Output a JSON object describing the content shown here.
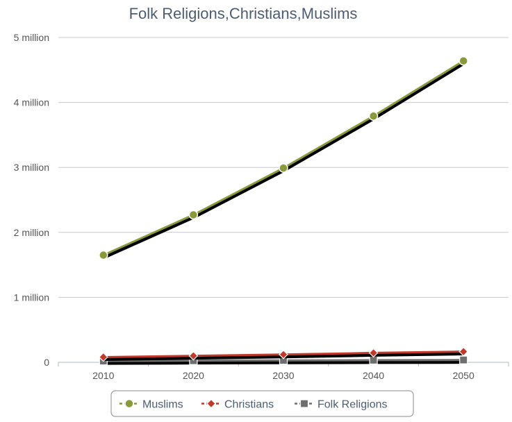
{
  "chart_data": {
    "type": "line",
    "title": "Folk Religions,Christians,Muslims",
    "xlabel": "",
    "ylabel": "",
    "categories": [
      "2010",
      "2020",
      "2030",
      "2040",
      "2050"
    ],
    "y_ticks": [
      0,
      1000000,
      2000000,
      3000000,
      4000000,
      5000000
    ],
    "y_tick_labels": [
      "0",
      "1 million",
      "2 million",
      "3 million",
      "4 million",
      "5 million"
    ],
    "ylim": [
      0,
      5000000
    ],
    "grid": true,
    "legend_position": "bottom",
    "series": [
      {
        "name": "Muslims",
        "values": [
          1650000,
          2270000,
          2990000,
          3790000,
          4640000
        ],
        "color": "#8a9a3b",
        "marker": "circle"
      },
      {
        "name": "Christians",
        "values": [
          80000,
          100000,
          120000,
          145000,
          165000
        ],
        "color": "#c0392b",
        "marker": "diamond"
      },
      {
        "name": "Folk Religions",
        "values": [
          20000,
          25000,
          30000,
          33000,
          36000
        ],
        "color": "#6e6e6e",
        "marker": "square"
      }
    ]
  }
}
